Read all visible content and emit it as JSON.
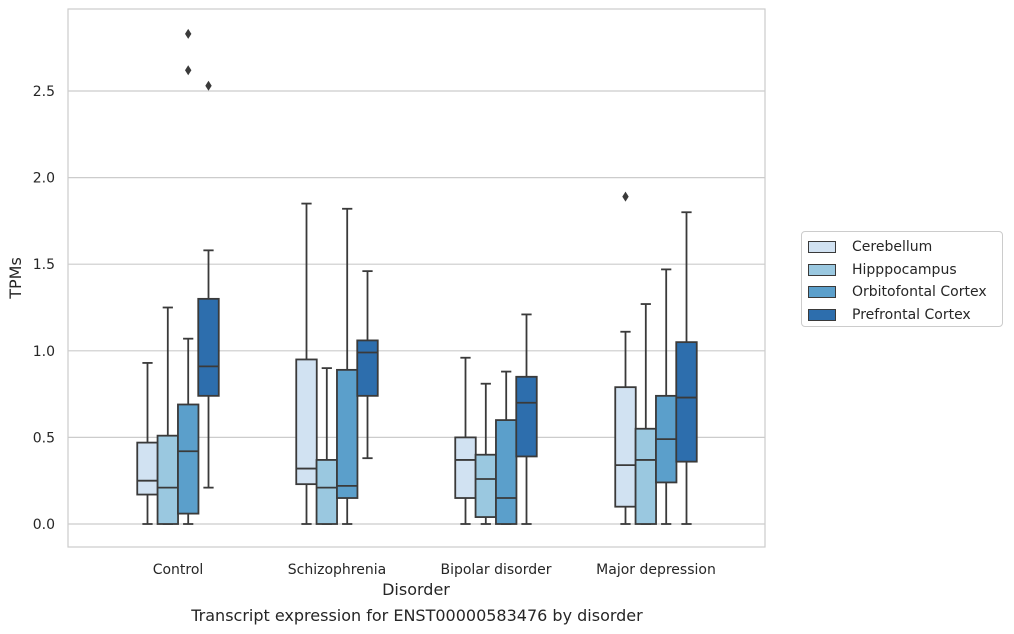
{
  "chart_data": {
    "type": "box",
    "title": "",
    "xlabel": "Disorder",
    "ylabel": "TPMs",
    "caption": "Transcript expression for ENST00000583476 by disorder",
    "ylim": [
      -0.14,
      2.97
    ],
    "yticks": [
      "0.0",
      "0.5",
      "1.0",
      "1.5",
      "2.0",
      "2.5"
    ],
    "yticks_values": [
      0,
      0.5,
      1.0,
      1.5,
      2.0,
      2.5
    ],
    "grid": "horizontal",
    "legend_position": "right",
    "categories": [
      "Control",
      "Schizophrenia",
      "Bipolar disorder",
      "Major depression"
    ],
    "series": [
      {
        "name": "Cerebellum",
        "color": "#d1e2f2",
        "boxes": [
          {
            "whislo": 0.0,
            "q1": 0.17,
            "med": 0.25,
            "q3": 0.47,
            "whishi": 0.93,
            "fliers": []
          },
          {
            "whislo": 0.0,
            "q1": 0.23,
            "med": 0.32,
            "q3": 0.95,
            "whishi": 1.85,
            "fliers": []
          },
          {
            "whislo": 0.0,
            "q1": 0.15,
            "med": 0.37,
            "q3": 0.5,
            "whishi": 0.96,
            "fliers": []
          },
          {
            "whislo": 0.0,
            "q1": 0.1,
            "med": 0.34,
            "q3": 0.79,
            "whishi": 1.11,
            "fliers": [
              1.89
            ]
          }
        ]
      },
      {
        "name": "Hipppocampus",
        "color": "#9ac8e0",
        "boxes": [
          {
            "whislo": 0.0,
            "q1": 0.0,
            "med": 0.21,
            "q3": 0.51,
            "whishi": 1.25,
            "fliers": []
          },
          {
            "whislo": 0.0,
            "q1": 0.0,
            "med": 0.21,
            "q3": 0.37,
            "whishi": 0.9,
            "fliers": []
          },
          {
            "whislo": 0.0,
            "q1": 0.04,
            "med": 0.26,
            "q3": 0.4,
            "whishi": 0.81,
            "fliers": []
          },
          {
            "whislo": 0.0,
            "q1": 0.0,
            "med": 0.37,
            "q3": 0.55,
            "whishi": 1.27,
            "fliers": []
          }
        ]
      },
      {
        "name": "Orbitofontal Cortex",
        "color": "#5b9fcb",
        "boxes": [
          {
            "whislo": 0.0,
            "q1": 0.06,
            "med": 0.42,
            "q3": 0.69,
            "whishi": 1.07,
            "fliers": [
              2.62,
              2.83
            ]
          },
          {
            "whislo": 0.0,
            "q1": 0.15,
            "med": 0.22,
            "q3": 0.89,
            "whishi": 1.82,
            "fliers": []
          },
          {
            "whislo": 0.0,
            "q1": 0.0,
            "med": 0.15,
            "q3": 0.6,
            "whishi": 0.88,
            "fliers": []
          },
          {
            "whislo": 0.0,
            "q1": 0.24,
            "med": 0.49,
            "q3": 0.74,
            "whishi": 1.47,
            "fliers": []
          }
        ]
      },
      {
        "name": "Prefrontal Cortex",
        "color": "#2d6ead",
        "boxes": [
          {
            "whislo": 0.21,
            "q1": 0.74,
            "med": 0.91,
            "q3": 1.3,
            "whishi": 1.58,
            "fliers": [
              2.53
            ]
          },
          {
            "whislo": 0.38,
            "q1": 0.74,
            "med": 0.99,
            "q3": 1.06,
            "whishi": 1.46,
            "fliers": []
          },
          {
            "whislo": 0.0,
            "q1": 0.39,
            "med": 0.7,
            "q3": 0.85,
            "whishi": 1.21,
            "fliers": []
          },
          {
            "whislo": 0.0,
            "q1": 0.36,
            "med": 0.73,
            "q3": 1.05,
            "whishi": 1.8,
            "fliers": []
          }
        ]
      }
    ]
  }
}
